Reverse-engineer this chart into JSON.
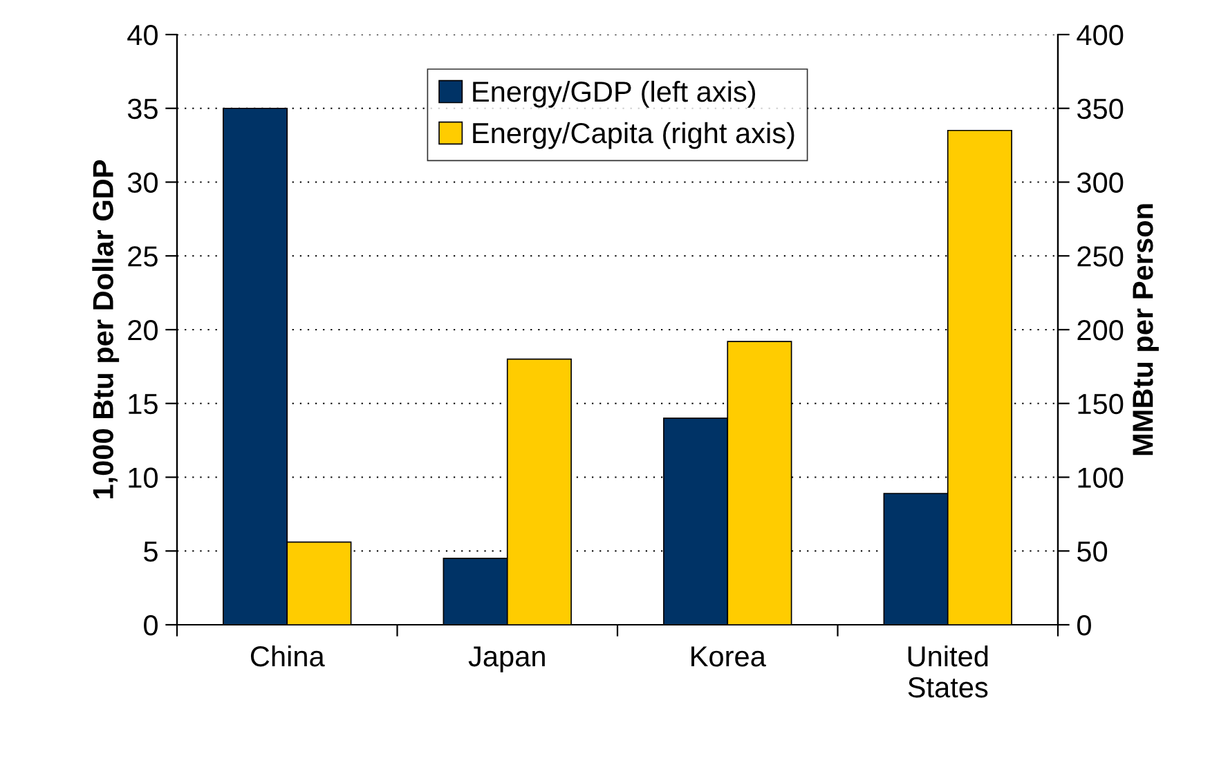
{
  "chart_data": {
    "type": "bar",
    "categories": [
      "China",
      "Japan",
      "Korea",
      "United\nStates"
    ],
    "series": [
      {
        "name": "Energy/GDP (left axis)",
        "color": "#003366",
        "values": [
          35,
          4.5,
          14,
          8.9
        ]
      },
      {
        "name": "Energy/Capita (right axis)",
        "color": "#ffcc00",
        "values": [
          56,
          180,
          192,
          335
        ],
        "axis": "y2"
      }
    ],
    "ylabel": "1,000 Btu per Dollar GDP",
    "y2label": "MMBtu per Person",
    "ylim": [
      0,
      40
    ],
    "yticks": [
      0,
      5,
      10,
      15,
      20,
      25,
      30,
      35,
      40
    ],
    "y2lim": [
      0,
      400
    ],
    "y2ticks": [
      0,
      50,
      100,
      150,
      200,
      250,
      300,
      350,
      400
    ],
    "grid": "y",
    "legend": "top"
  }
}
